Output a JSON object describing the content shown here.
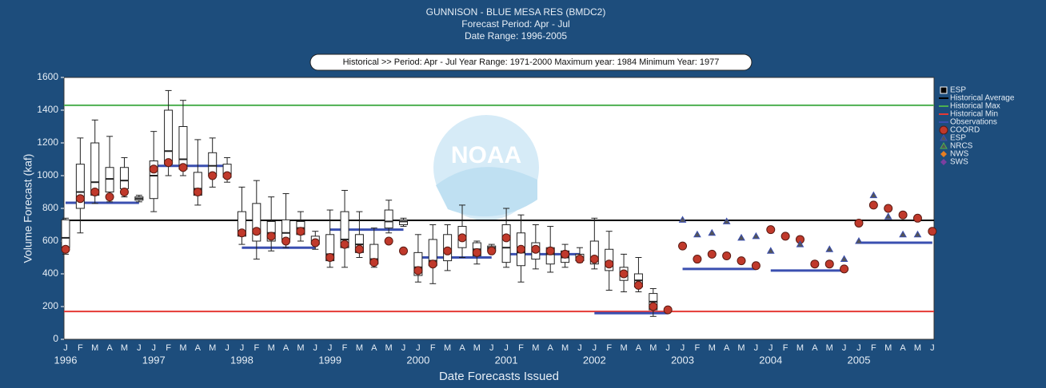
{
  "chart_data": {
    "type": "box",
    "title": "GUNNISON - BLUE MESA RES (BMDC2)",
    "subtitle": [
      "Forecast Period: Apr - Jul",
      "Date Range: 1996-2005"
    ],
    "banner": "Historical >> Period: Apr - Jul  Year Range: 1971-2000  Maximum year: 1984  Minimum Year: 1977",
    "watermark": "NOAA",
    "ylabel": "Volume Forecast (kaf)",
    "xlabel": "Date Forecasts Issued",
    "ylim": [
      0,
      1600
    ],
    "yticks": [
      0,
      200,
      400,
      600,
      800,
      1000,
      1200,
      1400,
      1600
    ],
    "categories": [
      "J",
      "F",
      "M",
      "A",
      "M",
      "J",
      "J",
      "F",
      "M",
      "A",
      "M",
      "J",
      "J",
      "F",
      "M",
      "A",
      "M",
      "J",
      "J",
      "F",
      "M",
      "A",
      "M",
      "J",
      "J",
      "F",
      "M",
      "A",
      "M",
      "J",
      "J",
      "F",
      "M",
      "A",
      "M",
      "J",
      "J",
      "F",
      "M",
      "A",
      "M",
      "J",
      "J",
      "F",
      "M",
      "A",
      "M",
      "J",
      "J",
      "F",
      "M",
      "A",
      "M",
      "J",
      "J",
      "F",
      "M",
      "A",
      "M",
      "J"
    ],
    "years": [
      "1996",
      "1997",
      "1998",
      "1999",
      "2000",
      "2001",
      "2002",
      "2003",
      "2004",
      "2005"
    ],
    "boxes": {
      "name": "ESP",
      "color": "#000000",
      "values": [
        [
          520,
          560,
          620,
          730,
          740
        ],
        [
          650,
          800,
          900,
          1070,
          1230
        ],
        [
          830,
          880,
          960,
          1200,
          1340
        ],
        [
          840,
          900,
          980,
          1050,
          1240
        ],
        [
          870,
          920,
          970,
          1050,
          1110
        ],
        [
          840,
          850,
          860,
          870,
          880
        ],
        [
          780,
          860,
          1000,
          1090,
          1270
        ],
        [
          1000,
          1070,
          1150,
          1400,
          1520
        ],
        [
          1000,
          1040,
          1100,
          1300,
          1460
        ],
        [
          820,
          880,
          920,
          1020,
          1220
        ],
        [
          930,
          1000,
          1060,
          1140,
          1230
        ],
        [
          960,
          990,
          1010,
          1070,
          1110
        ],
        [
          580,
          630,
          660,
          780,
          930
        ],
        [
          490,
          600,
          670,
          830,
          970
        ],
        [
          540,
          600,
          650,
          720,
          870
        ],
        [
          560,
          610,
          650,
          730,
          890
        ],
        [
          600,
          640,
          680,
          720,
          780
        ],
        [
          550,
          580,
          600,
          630,
          660
        ],
        [
          440,
          480,
          520,
          640,
          790
        ],
        [
          440,
          560,
          610,
          780,
          910
        ],
        [
          500,
          530,
          580,
          640,
          780
        ],
        [
          440,
          460,
          490,
          580,
          680
        ],
        [
          650,
          680,
          720,
          790,
          850
        ],
        [
          690,
          700,
          720,
          730,
          740
        ],
        [
          350,
          390,
          440,
          530,
          640
        ],
        [
          340,
          450,
          480,
          610,
          700
        ],
        [
          420,
          480,
          540,
          640,
          700
        ],
        [
          500,
          560,
          620,
          690,
          820
        ],
        [
          460,
          510,
          550,
          590,
          600
        ],
        [
          530,
          540,
          560,
          570,
          580
        ],
        [
          440,
          470,
          560,
          700,
          800
        ],
        [
          350,
          450,
          530,
          650,
          760
        ],
        [
          430,
          490,
          540,
          590,
          700
        ],
        [
          410,
          460,
          520,
          560,
          690
        ],
        [
          440,
          470,
          500,
          540,
          580
        ],
        [
          470,
          480,
          500,
          520,
          560
        ],
        [
          430,
          460,
          500,
          600,
          740
        ],
        [
          300,
          420,
          460,
          550,
          660
        ],
        [
          290,
          360,
          400,
          440,
          520
        ],
        [
          290,
          320,
          360,
          400,
          500
        ],
        [
          140,
          180,
          230,
          280,
          310
        ]
      ]
    },
    "reference_lines": [
      {
        "name": "Historical Average",
        "value": 727,
        "color": "#000000"
      },
      {
        "name": "Historical Max",
        "value": 1430,
        "color": "#4caf50"
      },
      {
        "name": "Historical Min",
        "value": 170,
        "color": "#e53935"
      }
    ],
    "observations": {
      "name": "Observations",
      "color": "#3a4fb0",
      "values": [
        834,
        1060,
        560,
        670,
        500,
        520,
        160,
        430,
        420,
        590
      ]
    },
    "series": [
      {
        "name": "COORD",
        "color": "#c0392b",
        "marker": "circle",
        "values": [
          550,
          860,
          900,
          870,
          900,
          null,
          1040,
          1080,
          1050,
          900,
          1000,
          1000,
          650,
          660,
          630,
          600,
          660,
          590,
          500,
          580,
          550,
          470,
          600,
          540,
          420,
          460,
          540,
          620,
          530,
          540,
          620,
          550,
          550,
          540,
          520,
          490,
          490,
          460,
          400,
          330,
          200,
          180,
          570,
          490,
          520,
          510,
          480,
          450,
          670,
          630,
          610,
          460,
          460,
          430,
          710,
          820,
          800,
          760,
          740,
          660
        ]
      },
      {
        "name": "ESP",
        "color": "#3a4fb0",
        "marker": "triangle",
        "values": [
          null,
          null,
          null,
          null,
          null,
          null,
          null,
          null,
          null,
          null,
          null,
          null,
          null,
          null,
          null,
          null,
          null,
          null,
          null,
          null,
          null,
          null,
          null,
          null,
          null,
          null,
          null,
          null,
          null,
          null,
          null,
          null,
          null,
          null,
          null,
          null,
          null,
          null,
          null,
          null,
          null,
          null,
          730,
          640,
          650,
          720,
          620,
          630,
          540,
          null,
          580,
          null,
          550,
          490,
          600,
          880,
          750,
          640,
          640,
          null
        ]
      },
      {
        "name": "NRCS",
        "color": "#4caf50",
        "marker": "triangle"
      },
      {
        "name": "NWS",
        "color": "#e67e22",
        "marker": "diamond"
      },
      {
        "name": "SWS",
        "color": "#7b3fa0",
        "marker": "diamond"
      }
    ]
  }
}
